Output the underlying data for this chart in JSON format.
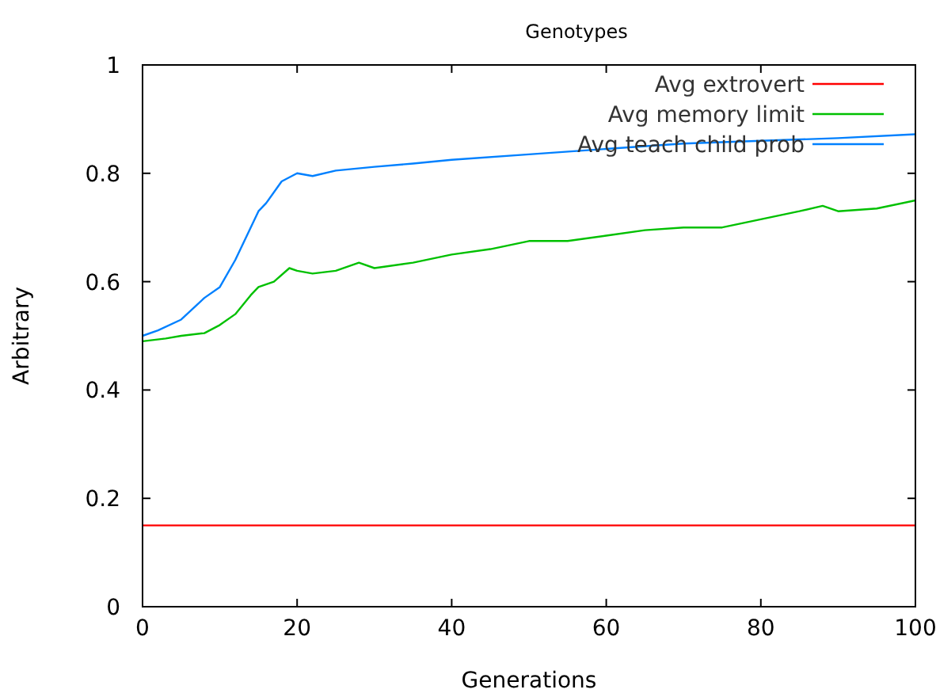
{
  "chart_data": {
    "type": "line",
    "title": "Genotypes",
    "xlabel": "Generations",
    "ylabel": "Arbitrary",
    "xlim": [
      0,
      100
    ],
    "ylim": [
      0,
      1
    ],
    "xticks": [
      0,
      20,
      40,
      60,
      80,
      100
    ],
    "yticks": [
      0,
      0.2,
      0.4,
      0.6,
      0.8,
      1
    ],
    "legend": "top right",
    "grid": false,
    "series": [
      {
        "name": "Avg extrovert",
        "color": "#ff0000",
        "x": [
          0,
          100
        ],
        "values": [
          0.15,
          0.15
        ]
      },
      {
        "name": "Avg memory limit",
        "color": "#00c000",
        "x": [
          0,
          3,
          5,
          8,
          10,
          12,
          14,
          15,
          17,
          19,
          20,
          22,
          25,
          28,
          30,
          35,
          40,
          45,
          50,
          55,
          60,
          65,
          70,
          75,
          80,
          85,
          88,
          90,
          95,
          100
        ],
        "values": [
          0.49,
          0.495,
          0.5,
          0.505,
          0.52,
          0.54,
          0.575,
          0.59,
          0.6,
          0.625,
          0.62,
          0.615,
          0.62,
          0.635,
          0.625,
          0.635,
          0.65,
          0.66,
          0.675,
          0.675,
          0.685,
          0.695,
          0.7,
          0.7,
          0.715,
          0.73,
          0.74,
          0.73,
          0.735,
          0.75
        ]
      },
      {
        "name": "Avg teach child prob",
        "color": "#0080ff",
        "x": [
          0,
          2,
          5,
          8,
          10,
          12,
          14,
          15,
          16,
          18,
          20,
          22,
          25,
          30,
          35,
          40,
          50,
          60,
          70,
          80,
          90,
          100
        ],
        "values": [
          0.5,
          0.51,
          0.53,
          0.57,
          0.59,
          0.64,
          0.7,
          0.73,
          0.745,
          0.785,
          0.8,
          0.795,
          0.805,
          0.812,
          0.818,
          0.825,
          0.835,
          0.845,
          0.855,
          0.86,
          0.865,
          0.872
        ]
      }
    ]
  }
}
